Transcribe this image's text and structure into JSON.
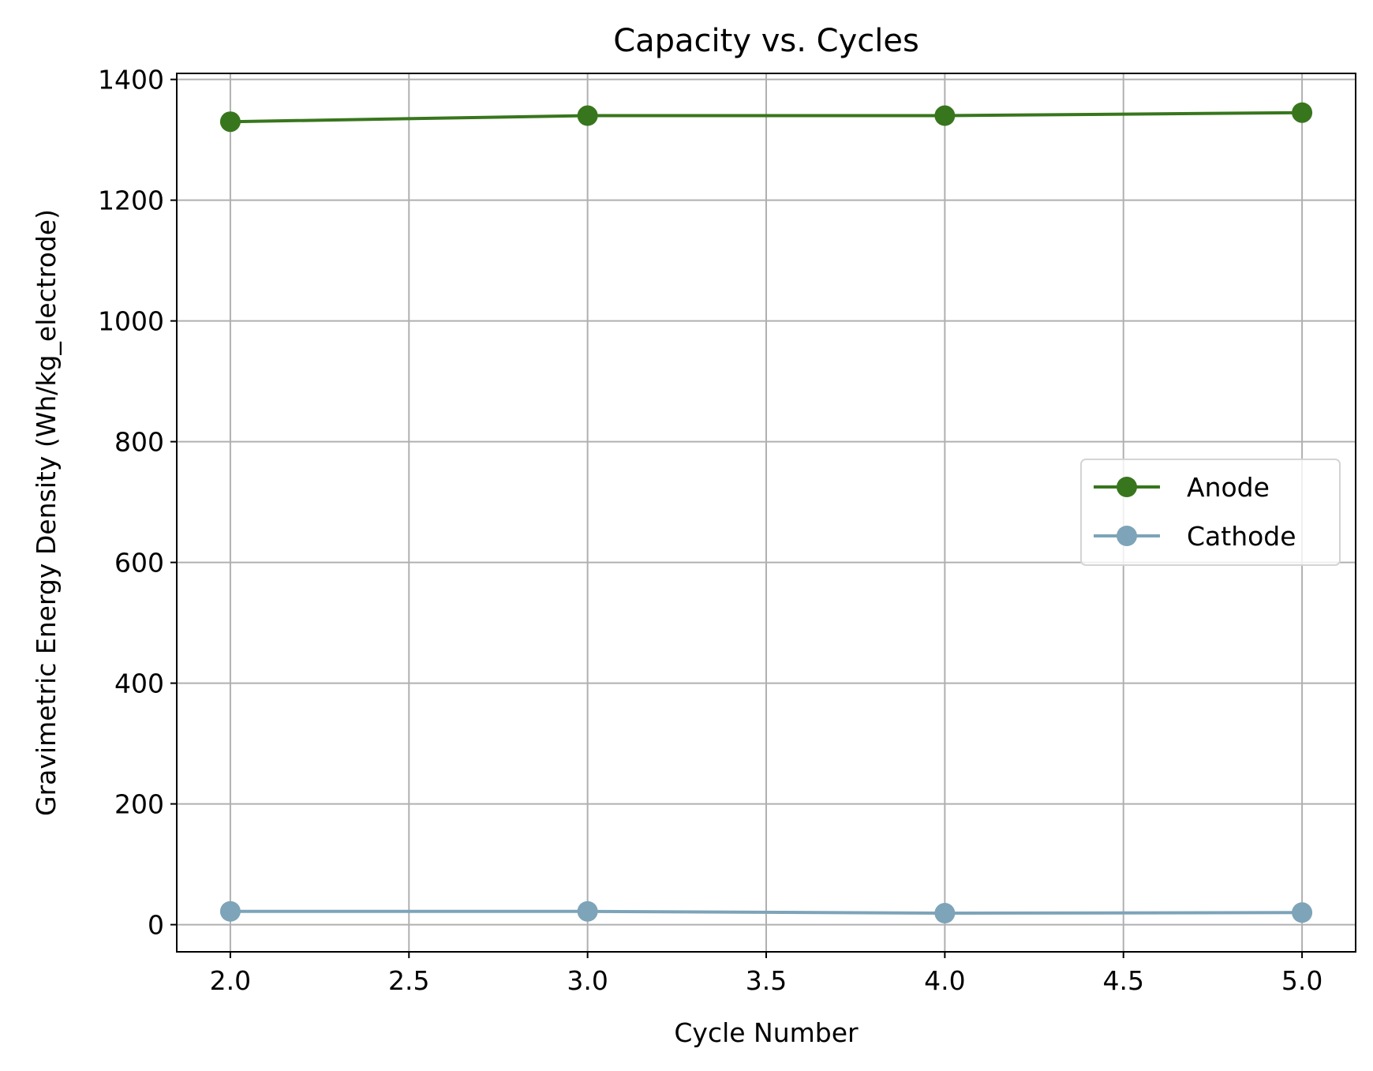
{
  "chart_data": {
    "type": "line",
    "title": "Capacity vs. Cycles",
    "xlabel": "Cycle Number",
    "ylabel": "Gravimetric Energy Density (Wh/kg_electrode)",
    "xlim": [
      1.85,
      5.15
    ],
    "ylim": [
      -45,
      1410
    ],
    "xticks": [
      2.0,
      2.5,
      3.0,
      3.5,
      4.0,
      4.5,
      5.0
    ],
    "xtick_labels": [
      "2.0",
      "2.5",
      "3.0",
      "3.5",
      "4.0",
      "4.5",
      "5.0"
    ],
    "yticks": [
      0,
      200,
      400,
      600,
      800,
      1000,
      1200,
      1400
    ],
    "ytick_labels": [
      "0",
      "200",
      "400",
      "600",
      "800",
      "1000",
      "1200",
      "1400"
    ],
    "grid": true,
    "legend_position": "center-right",
    "series": [
      {
        "name": "Anode",
        "color": "#38761d",
        "x": [
          2,
          3,
          4,
          5
        ],
        "y": [
          1330,
          1340,
          1340,
          1345
        ]
      },
      {
        "name": "Cathode",
        "color": "#7da4b8",
        "x": [
          2,
          3,
          4,
          5
        ],
        "y": [
          22,
          22,
          19,
          20
        ]
      }
    ]
  }
}
